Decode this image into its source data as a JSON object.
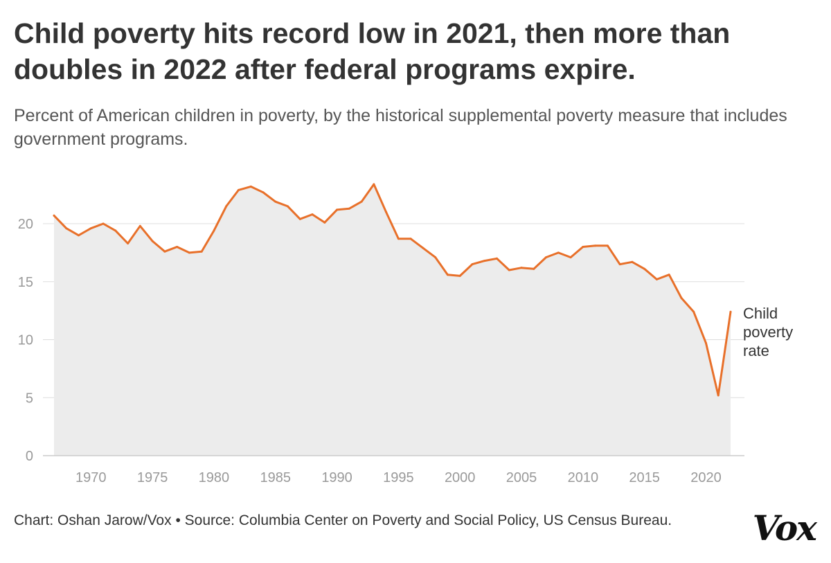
{
  "header": {
    "title": "Child poverty hits record low in 2021, then more than doubles in 2022 after federal programs expire.",
    "subtitle": "Percent of American children in poverty, by the historical supplemental poverty measure that includes government programs."
  },
  "footer": {
    "credit": "Chart: Oshan Jarow/Vox • Source: Columbia Center on Poverty and Social Policy, US Census Bureau."
  },
  "logo": {
    "text": "Vox"
  },
  "colors": {
    "line": "#e8702a",
    "area": "#ececec",
    "grid": "#dddddd",
    "axis": "#cccccc"
  },
  "chart_data": {
    "type": "area",
    "title": "Child poverty hits record low in 2021, then more than doubles in 2022 after federal programs expire.",
    "subtitle": "Percent of American children in poverty, by the historical supplemental poverty measure that includes government programs.",
    "xlabel": "",
    "ylabel": "",
    "xlim": [
      1967,
      2022
    ],
    "ylim": [
      0,
      25
    ],
    "x_ticks": [
      1970,
      1975,
      1980,
      1985,
      1990,
      1995,
      2000,
      2005,
      2010,
      2015,
      2020
    ],
    "y_ticks": [
      0,
      5,
      10,
      15,
      20
    ],
    "grid": true,
    "series": [
      {
        "name": "Child poverty rate",
        "label_lines": [
          "Child",
          "poverty",
          "rate"
        ],
        "x": [
          1967,
          1968,
          1969,
          1970,
          1971,
          1972,
          1973,
          1974,
          1975,
          1976,
          1977,
          1978,
          1979,
          1980,
          1981,
          1982,
          1983,
          1984,
          1985,
          1986,
          1987,
          1988,
          1989,
          1990,
          1991,
          1992,
          1993,
          1994,
          1995,
          1996,
          1997,
          1998,
          1999,
          2000,
          2001,
          2002,
          2003,
          2004,
          2005,
          2006,
          2007,
          2008,
          2009,
          2010,
          2011,
          2012,
          2013,
          2014,
          2015,
          2016,
          2017,
          2018,
          2019,
          2020,
          2021,
          2022
        ],
        "values": [
          20.7,
          19.6,
          19.0,
          19.6,
          20.0,
          19.4,
          18.3,
          19.8,
          18.5,
          17.6,
          18.0,
          17.5,
          17.6,
          19.4,
          21.5,
          22.9,
          23.2,
          22.7,
          21.9,
          21.5,
          20.4,
          20.8,
          20.1,
          21.2,
          21.3,
          21.9,
          23.4,
          21.0,
          18.7,
          18.7,
          17.9,
          17.1,
          15.6,
          15.5,
          16.5,
          16.8,
          17.0,
          16.0,
          16.2,
          16.1,
          17.1,
          17.5,
          17.1,
          18.0,
          18.1,
          18.1,
          16.5,
          16.7,
          16.1,
          15.2,
          15.6,
          13.6,
          12.4,
          9.7,
          5.2,
          12.4
        ]
      }
    ]
  }
}
